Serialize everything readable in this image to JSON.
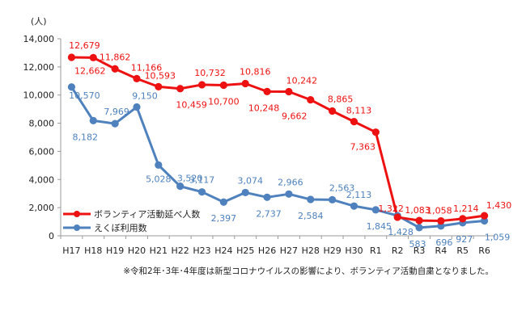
{
  "chart_data": {
    "type": "line",
    "y_unit_label": "(人)",
    "categories": [
      "H17",
      "H18",
      "H19",
      "H20",
      "H21",
      "H22",
      "H23",
      "H24",
      "H25",
      "H26",
      "H27",
      "H28",
      "H29",
      "H30",
      "R1",
      "R2",
      "R3",
      "R4",
      "R5",
      "R6"
    ],
    "ylim": [
      0,
      14000
    ],
    "yticks": [
      "0",
      "2,000",
      "4,000",
      "6,000",
      "8,000",
      "10,000",
      "12,000",
      "14,000"
    ],
    "grid": false,
    "legend_position": "lower-left",
    "series": [
      {
        "name": "ボランティア活動延べ人数",
        "color": "#ee1111",
        "values": [
          12679,
          12662,
          11862,
          11166,
          10593,
          10459,
          10732,
          10700,
          10816,
          10248,
          10242,
          9662,
          8865,
          8113,
          7363,
          1322,
          1083,
          1058,
          1214,
          1430
        ],
        "labels": [
          "12,679",
          "12,662",
          "11,862",
          "11,166",
          "10,593",
          "10,459",
          "10,732",
          "10,700",
          "10,816",
          "10,248",
          "10,242",
          "9,662",
          "8,865",
          "8,113",
          "7,363",
          "1,322",
          "1,083",
          "1,058",
          "1,214",
          "1,430"
        ]
      },
      {
        "name": "えくぼ利用数",
        "color": "#4e81bd",
        "values": [
          10570,
          8182,
          7969,
          9150,
          5028,
          3520,
          3117,
          2397,
          3074,
          2737,
          2966,
          2584,
          2563,
          2113,
          1845,
          1428,
          583,
          696,
          927,
          1059
        ],
        "labels": [
          "10,570",
          "8,182",
          "7,969",
          "9,150",
          "5,028",
          "3,520",
          "3,117",
          "2,397",
          "3,074",
          "2,737",
          "2,966",
          "2,584",
          "2,563",
          "2,113",
          "1,845",
          "1,428",
          "583",
          "696",
          "927",
          "1,059"
        ]
      }
    ],
    "note": "※令和2年･3年･4年度は新型コロナウイルスの影響により、ボランティア活動自粛となりました。"
  }
}
